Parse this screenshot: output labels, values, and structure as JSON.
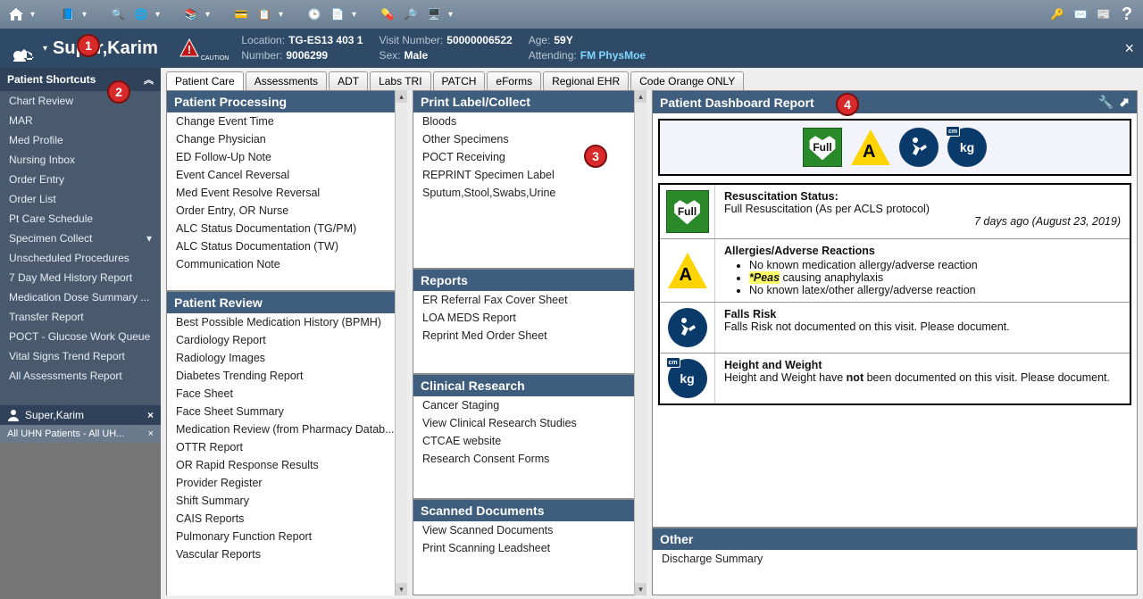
{
  "toolbar_icons": [
    "home",
    "book",
    "search-inbox",
    "orbit",
    "books",
    "id-card",
    "clipboard",
    "clock",
    "notes",
    "pill",
    "search-doc",
    "people-pc"
  ],
  "toolbar_right_icons": [
    "key",
    "mail",
    "newspaper",
    "help"
  ],
  "patient": {
    "name": "Super,Karim",
    "location_label": "Location:",
    "location": "TG-ES13 403 1",
    "number_label": "Number:",
    "number": "9006299",
    "visit_label": "Visit Number:",
    "visit": "50000006522",
    "sex_label": "Sex:",
    "sex": "Male",
    "age_label": "Age:",
    "age": "59Y",
    "attending_label": "Attending:",
    "attending": "FM PhysMoe"
  },
  "sidebar": {
    "header": "Patient Shortcuts",
    "items": [
      "Chart Review",
      "MAR",
      "Med Profile",
      "Nursing Inbox",
      "Order Entry",
      "Order List",
      "Pt Care Schedule",
      "Specimen Collect",
      "Unscheduled Procedures",
      "7 Day Med History Report",
      "Medication Dose Summary ...",
      "Transfer Report",
      "POCT - Glucose Work Queue",
      "Vital Signs Trend Report",
      "All Assessments Report"
    ],
    "expandable_index": 7,
    "patient_chip": "Super,Karim",
    "patient_sub": "All UHN Patients - All UH..."
  },
  "tabs": [
    "Patient Care",
    "Assessments",
    "ADT",
    "Labs TRI",
    "PATCH",
    "eForms",
    "Regional EHR",
    "Code Orange ONLY"
  ],
  "active_tab": 0,
  "col1": {
    "processing_title": "Patient Processing",
    "processing_items": [
      "Change Event Time",
      "Change Physician",
      "ED Follow-Up Note",
      "Event Cancel Reversal",
      "Med Event Resolve Reversal",
      "Order Entry, OR Nurse",
      "ALC Status Documentation (TG/PM)",
      "ALC Status Documentation (TW)",
      "Communication Note"
    ],
    "review_title": "Patient Review",
    "review_items": [
      "Best Possible Medication History (BPMH)",
      "Cardiology Report",
      "Radiology Images",
      "Diabetes Trending Report",
      "Face Sheet",
      "Face Sheet Summary",
      "Medication Review (from Pharmacy Datab...",
      "OTTR Report",
      "OR Rapid Response Results",
      "Provider Register",
      "Shift Summary",
      "CAIS Reports",
      "Pulmonary Function Report",
      "Vascular Reports"
    ]
  },
  "col2": {
    "print_title": "Print Label/Collect",
    "print_items": [
      "Bloods",
      "Other Specimens",
      "POCT Receiving",
      "REPRINT Specimen Label",
      "Sputum,Stool,Swabs,Urine"
    ],
    "reports_title": "Reports",
    "reports_items": [
      "ER Referral Fax Cover Sheet",
      "LOA MEDS Report",
      "Reprint Med Order Sheet"
    ],
    "research_title": "Clinical Research",
    "research_items": [
      "Cancer Staging",
      "View Clinical Research Studies",
      "CTCAE website",
      "Research Consent Forms"
    ],
    "scanned_title": "Scanned Documents",
    "scanned_items": [
      "View Scanned Documents",
      "Print Scanning Leadsheet"
    ]
  },
  "col3": {
    "dash_title": "Patient Dashboard Report",
    "other_title": "Other",
    "other_items": [
      "Discharge Summary"
    ],
    "resus": {
      "title": "Resuscitation Status:",
      "detail": "Full Resuscitation (As per ACLS protocol)",
      "date": "7 days ago (August 23, 2019)"
    },
    "allergy": {
      "title": "Allergies/Adverse Reactions",
      "items": [
        "No known medication allergy/adverse reaction",
        {
          "hl": "*Peas",
          "rest": " causing anaphylaxis"
        },
        "No known latex/other allergy/adverse reaction"
      ]
    },
    "falls": {
      "title": "Falls Risk",
      "detail": "Falls Risk not documented on this visit. Please document."
    },
    "hw": {
      "title": "Height and Weight",
      "pre": "Height and Weight have ",
      "bold": "not",
      "post": " been documented on this visit. Please document."
    }
  },
  "annotations": {
    "1": "1",
    "2": "2",
    "3": "3",
    "4": "4"
  }
}
